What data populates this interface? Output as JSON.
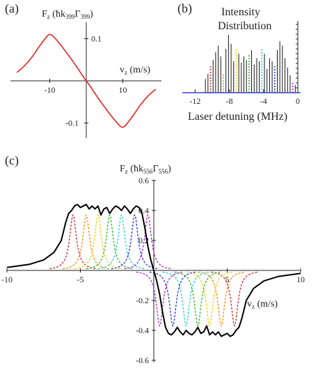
{
  "panel_labels": [
    "(a)",
    "(b)",
    "(c)"
  ],
  "chart_data": [
    {
      "id": "a",
      "type": "line",
      "ylabel": "F_z (ħk_399Γ_399)",
      "xlabel": "v_z (m/s)",
      "x_ticks": [
        -10,
        10
      ],
      "y_ticks": [
        0.1,
        -0.1
      ],
      "xlim": [
        -20,
        20
      ],
      "ylim": [
        -0.13,
        0.13
      ],
      "grid": false,
      "series": [
        {
          "color": "#ee2222",
          "x": [
            -19,
            -17,
            -15,
            -13,
            -11,
            -10,
            -9,
            -7,
            -5,
            -3,
            -1,
            0,
            1,
            3,
            5,
            7,
            9,
            10,
            11,
            13,
            15,
            17,
            19
          ],
          "y": [
            0.02,
            0.035,
            0.055,
            0.08,
            0.103,
            0.11,
            0.105,
            0.085,
            0.062,
            0.038,
            0.012,
            0.0,
            -0.012,
            -0.038,
            -0.062,
            -0.085,
            -0.105,
            -0.11,
            -0.103,
            -0.08,
            -0.055,
            -0.035,
            -0.02
          ]
        }
      ]
    },
    {
      "id": "b",
      "type": "bar",
      "title_lines": [
        "Intensity",
        "Distribution"
      ],
      "xlabel": "Laser detuning (MHz)",
      "x_ticks": [
        -12,
        -8,
        -4,
        0
      ],
      "xlim": [
        -13,
        1
      ],
      "grid": false,
      "bars": [
        {
          "x": -10.8,
          "h": 0.22,
          "color": "#111111"
        },
        {
          "x": -10.5,
          "h": 0.3,
          "color": "#111111"
        },
        {
          "x": -10.2,
          "h": 0.42,
          "color": "#dd2222"
        },
        {
          "x": -9.9,
          "h": 0.52,
          "color": "#111111"
        },
        {
          "x": -9.6,
          "h": 0.65,
          "color": "#111111"
        },
        {
          "x": -9.3,
          "h": 0.75,
          "color": "#111111"
        },
        {
          "x": -9.0,
          "h": 0.58,
          "color": "#111111"
        },
        {
          "x": -8.7,
          "h": 0.3,
          "color": "#ff8800"
        },
        {
          "x": -8.4,
          "h": 0.7,
          "color": "#111111"
        },
        {
          "x": -8.1,
          "h": 0.92,
          "color": "#111111"
        },
        {
          "x": -7.8,
          "h": 0.78,
          "color": "#111111"
        },
        {
          "x": -7.5,
          "h": 0.5,
          "color": "#111111"
        },
        {
          "x": -7.2,
          "h": 0.7,
          "color": "#ffcc00"
        },
        {
          "x": -6.9,
          "h": 0.62,
          "color": "#111111"
        },
        {
          "x": -6.6,
          "h": 0.48,
          "color": "#111111"
        },
        {
          "x": -6.3,
          "h": 0.58,
          "color": "#111111"
        },
        {
          "x": -6.0,
          "h": 0.52,
          "color": "#111111"
        },
        {
          "x": -5.7,
          "h": 0.6,
          "color": "#22bb22"
        },
        {
          "x": -5.4,
          "h": 0.68,
          "color": "#111111"
        },
        {
          "x": -5.1,
          "h": 0.45,
          "color": "#111111"
        },
        {
          "x": -4.8,
          "h": 0.55,
          "color": "#111111"
        },
        {
          "x": -4.5,
          "h": 0.5,
          "color": "#111111"
        },
        {
          "x": -4.2,
          "h": 0.7,
          "color": "#22ccdd"
        },
        {
          "x": -3.9,
          "h": 0.62,
          "color": "#111111"
        },
        {
          "x": -3.6,
          "h": 0.38,
          "color": "#111111"
        },
        {
          "x": -3.3,
          "h": 0.55,
          "color": "#111111"
        },
        {
          "x": -3.0,
          "h": 0.5,
          "color": "#111111"
        },
        {
          "x": -2.7,
          "h": 0.42,
          "color": "#2233dd"
        },
        {
          "x": -2.4,
          "h": 0.68,
          "color": "#111111"
        },
        {
          "x": -2.1,
          "h": 0.82,
          "color": "#111111"
        },
        {
          "x": -1.8,
          "h": 0.75,
          "color": "#111111"
        },
        {
          "x": -1.5,
          "h": 0.55,
          "color": "#111111"
        },
        {
          "x": -1.2,
          "h": 0.4,
          "color": "#111111"
        },
        {
          "x": -0.9,
          "h": 0.28,
          "color": "#111111"
        },
        {
          "x": -0.6,
          "h": 0.18,
          "color": "#aa22cc"
        },
        {
          "x": -0.3,
          "h": 0.12,
          "color": "#111111"
        }
      ]
    },
    {
      "id": "c",
      "type": "line",
      "ylabel": "F_z (ħk_556Γ_556)",
      "xlabel": "v_z (m/s)",
      "x_ticks": [
        -10,
        -5,
        5,
        10
      ],
      "y_ticks": [
        0.6,
        0.4,
        0.2,
        -0.2,
        -0.4,
        -0.6
      ],
      "xlim": [
        -10,
        10
      ],
      "ylim": [
        -0.6,
        0.6
      ],
      "grid": false,
      "lorentz_width": 0.28,
      "lorentz_height": 0.37,
      "lorentz_series": [
        {
          "color": "#dd2222",
          "center": -5.5
        },
        {
          "color": "#ff8800",
          "center": -4.6
        },
        {
          "color": "#ffcc00",
          "center": -3.8
        },
        {
          "color": "#22bb22",
          "center": -3.0
        },
        {
          "color": "#22ccdd",
          "center": -2.2
        },
        {
          "color": "#2233dd",
          "center": -1.3
        },
        {
          "color": "#aa22cc",
          "center": -0.4
        }
      ],
      "envelope": {
        "color": "#000000",
        "x": [
          -10,
          -8.5,
          -7.5,
          -6.8,
          -6.3,
          -6.0,
          -5.8,
          -5.6,
          -5.4,
          -5.2,
          -5.0,
          -4.8,
          -4.6,
          -4.4,
          -4.2,
          -4.0,
          -3.8,
          -3.6,
          -3.4,
          -3.2,
          -3.0,
          -2.8,
          -2.6,
          -2.4,
          -2.2,
          -2.0,
          -1.8,
          -1.6,
          -1.4,
          -1.2,
          -1.0,
          -0.8,
          -0.6,
          -0.4,
          -0.2,
          0
        ],
        "y": [
          0.02,
          0.04,
          0.07,
          0.12,
          0.2,
          0.32,
          0.38,
          0.4,
          0.43,
          0.44,
          0.42,
          0.43,
          0.44,
          0.41,
          0.43,
          0.41,
          0.43,
          0.37,
          0.41,
          0.42,
          0.38,
          0.41,
          0.43,
          0.42,
          0.4,
          0.43,
          0.41,
          0.38,
          0.41,
          0.43,
          0.42,
          0.38,
          0.28,
          0.16,
          0.07,
          0.0
        ]
      }
    }
  ]
}
